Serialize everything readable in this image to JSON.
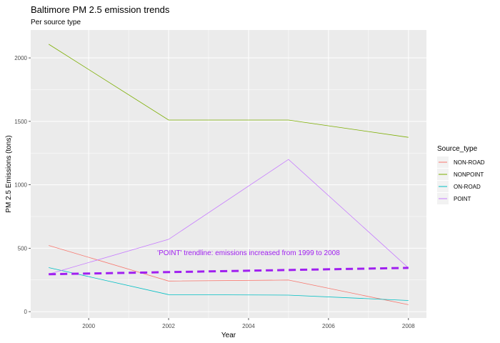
{
  "chart_data": {
    "type": "line",
    "title": "Baltimore PM 2.5 emission trends",
    "subtitle": "Per source type",
    "xlabel": "Year",
    "ylabel": "PM 2.5 Emissions (tons)",
    "xlim": [
      1998.55,
      2008.45
    ],
    "ylim": [
      -50,
      2220
    ],
    "x_ticks": [
      2000,
      2002,
      2004,
      2006,
      2008
    ],
    "y_ticks": [
      0,
      500,
      1000,
      1500,
      2000
    ],
    "grid": true,
    "legend_title": "Source_type",
    "legend_position": "right",
    "x": [
      1999,
      2002,
      2005,
      2008
    ],
    "series": [
      {
        "name": "NON-ROAD",
        "color": "#F8766D",
        "values": [
          522,
          241,
          249,
          55
        ]
      },
      {
        "name": "NONPOINT",
        "color": "#7CAE00",
        "values": [
          2108,
          1510,
          1510,
          1374
        ]
      },
      {
        "name": "ON-ROAD",
        "color": "#00BFC4",
        "values": [
          347,
          134,
          130,
          88
        ]
      },
      {
        "name": "POINT",
        "color": "#C77CFF",
        "values": [
          296,
          570,
          1200,
          345
        ]
      }
    ],
    "trendline": {
      "series": "POINT",
      "color": "#A020F0",
      "x": [
        1999,
        2008
      ],
      "values": [
        295,
        345
      ]
    },
    "annotation": {
      "text": "'POINT' trendline: emissions increased from 1999 to 2008",
      "x": 2004,
      "y": 445,
      "color": "#A020F0"
    }
  }
}
